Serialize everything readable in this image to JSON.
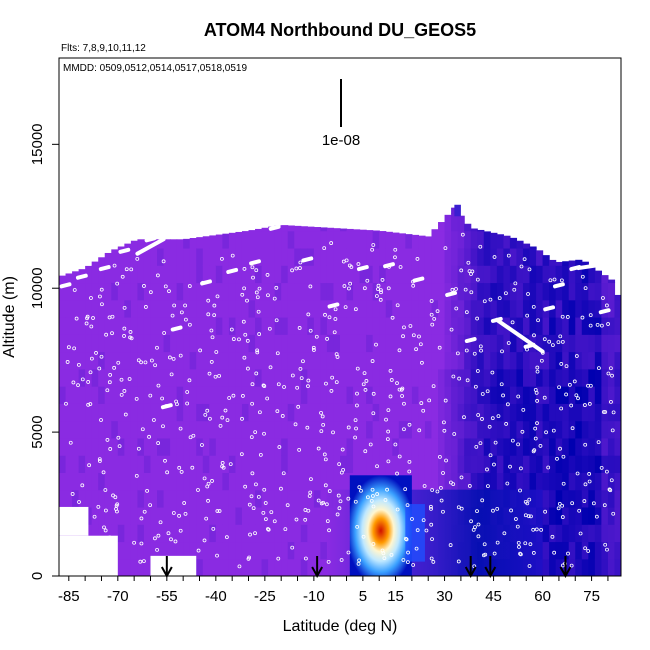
{
  "chart_data": {
    "type": "heatmap",
    "title": "ATOM4 Northbound DU_GEOS5",
    "flights_note": "Flts: 7,8,9,10,11,12",
    "dates_note": "MMDD: 0509,0512,0514,0517,0518,0519",
    "scale_label": "1e-08",
    "xlabel": "Latitude (deg N)",
    "ylabel": "Altitude (m)",
    "xlim": [
      -88,
      84
    ],
    "ylim": [
      0,
      18000
    ],
    "x_ticks": [
      -85,
      -70,
      -55,
      -40,
      -25,
      -10,
      5,
      15,
      30,
      45,
      60,
      75
    ],
    "y_ticks": [
      0,
      5000,
      10000,
      15000
    ],
    "grid": false,
    "colors": {
      "background": "#8a2be2",
      "low": "#0000b0",
      "medium": "#3aa0ff",
      "high": "#ffffff",
      "peak": "#d01000",
      "track": "#ffffff",
      "arrow": "#000000"
    },
    "column_tops": [
      {
        "lat": -88,
        "alt": 10400
      },
      {
        "lat": -80,
        "alt": 10700
      },
      {
        "lat": -72,
        "alt": 11300
      },
      {
        "lat": -64,
        "alt": 11700
      },
      {
        "lat": -50,
        "alt": 11700
      },
      {
        "lat": -30,
        "alt": 12000
      },
      {
        "lat": -20,
        "alt": 12200
      },
      {
        "lat": -5,
        "alt": 12100
      },
      {
        "lat": 10,
        "alt": 12000
      },
      {
        "lat": 25,
        "alt": 11800
      },
      {
        "lat": 33,
        "alt": 12800
      },
      {
        "lat": 38,
        "alt": 12100
      },
      {
        "lat": 50,
        "alt": 11800
      },
      {
        "lat": 58,
        "alt": 11400
      },
      {
        "lat": 64,
        "alt": 10900
      },
      {
        "lat": 72,
        "alt": 11000
      },
      {
        "lat": 81,
        "alt": 10300
      },
      {
        "lat": 84,
        "alt": 9500
      }
    ],
    "series": [
      {
        "type": "flight-track",
        "points": [
          [
            -86,
            10100
          ],
          [
            -81,
            10400
          ],
          [
            -74,
            10700
          ],
          [
            -68,
            11300
          ],
          [
            -60,
            11700
          ],
          [
            -55,
            5900
          ],
          [
            -52,
            8600
          ],
          [
            -43,
            10200
          ],
          [
            -35,
            10600
          ],
          [
            -28,
            10900
          ],
          [
            -22,
            12100
          ],
          [
            -12,
            11000
          ],
          [
            -4,
            9400
          ],
          [
            5,
            10700
          ],
          [
            13,
            10800
          ],
          [
            22,
            10300
          ],
          [
            32,
            9800
          ],
          [
            38,
            8200
          ],
          [
            46,
            8900
          ],
          [
            56,
            8000
          ],
          [
            62,
            9300
          ],
          [
            65,
            10100
          ],
          [
            70,
            10700
          ],
          [
            79,
            9200
          ]
        ]
      }
    ],
    "arrows_lat": [
      -55,
      -9,
      38,
      44,
      67
    ]
  }
}
